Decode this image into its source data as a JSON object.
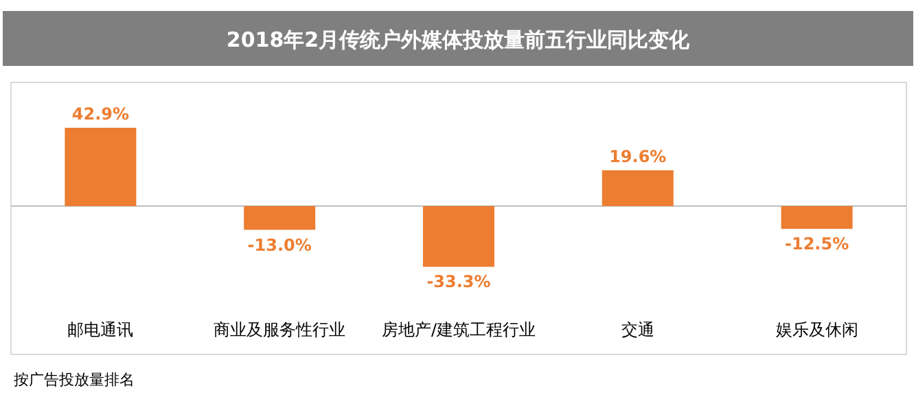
{
  "chart_data": {
    "type": "bar",
    "title": "2018年2月传统户外媒体投放量前五行业同比变化",
    "categories": [
      "邮电通讯",
      "商业及服务性行业",
      "房地产/建筑工程行业",
      "交通",
      "娱乐及休闲"
    ],
    "values": [
      42.9,
      -13.0,
      -33.3,
      19.6,
      -12.5
    ],
    "value_labels": [
      "42.9%",
      "-13.0%",
      "-33.3%",
      "19.6%",
      "-12.5%"
    ],
    "color": "#ed7d31",
    "annotations": [
      "按广告投放量排名"
    ]
  }
}
